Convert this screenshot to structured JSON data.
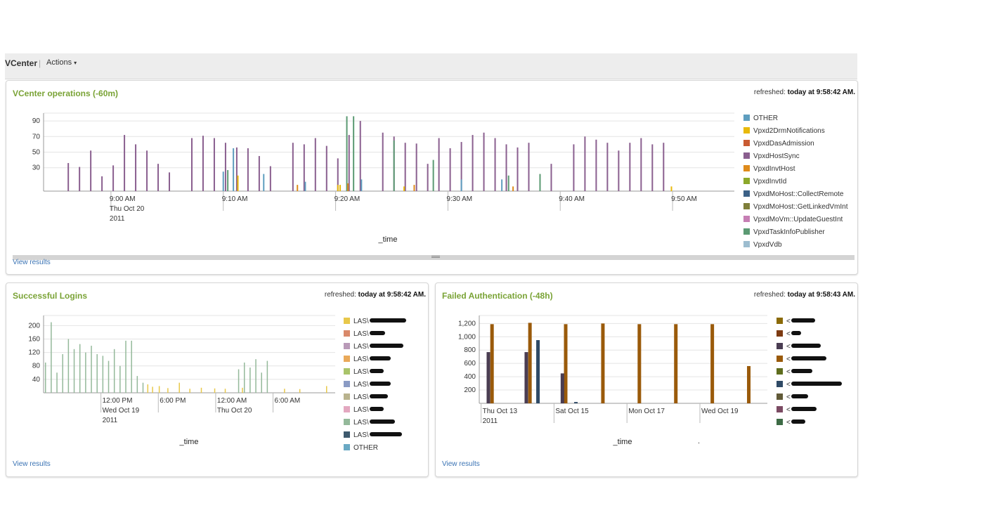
{
  "app": {
    "title": "VCenter",
    "separator": "|",
    "actions_label": "Actions",
    "actions_caret": "▾"
  },
  "panels": {
    "vcenter_ops": {
      "title": "VCenter operations (-60m)",
      "refreshed_label": "refreshed:",
      "refreshed_time": "today at 9:58:42 AM.",
      "view_results": "View results",
      "legend": [
        {
          "label": "OTHER",
          "color": "#5e9ebf"
        },
        {
          "label": "Vpxd2DrmNotifications",
          "color": "#e8b90a"
        },
        {
          "label": "VpxdDasAdmission",
          "color": "#c95b32"
        },
        {
          "label": "VpxdHostSync",
          "color": "#8a5f8f"
        },
        {
          "label": "VpxdInvtHost",
          "color": "#df8b1b"
        },
        {
          "label": "VpxdInvtId",
          "color": "#8ca82a"
        },
        {
          "label": "VpxdMoHost::CollectRemote",
          "color": "#3c6187"
        },
        {
          "label": "VpxdMoHost::GetLinkedVmInt",
          "color": "#7f7f3a"
        },
        {
          "label": "VpxdMoVm::UpdateGuestInt",
          "color": "#c67fb4"
        },
        {
          "label": "VpxdTaskInfoPublisher",
          "color": "#5b9a73"
        },
        {
          "label": "VpxdVdb",
          "color": "#9dbdcf"
        }
      ]
    },
    "successful_logins": {
      "title": "Successful Logins",
      "refreshed_label": "refreshed:",
      "refreshed_time": "today at 9:58:42 AM.",
      "view_results": "View results",
      "legend": [
        {
          "label": "LAS\\",
          "color": "#e8c84a"
        },
        {
          "label": "LAS\\",
          "color": "#d9896a"
        },
        {
          "label": "LAS\\",
          "color": "#b99ab8"
        },
        {
          "label": "LAS\\",
          "color": "#e9a95a"
        },
        {
          "label": "LAS\\",
          "color": "#a9c46a"
        },
        {
          "label": "LAS\\",
          "color": "#8a9bc4"
        },
        {
          "label": "LAS\\",
          "color": "#b9b38e"
        },
        {
          "label": "LAS\\",
          "color": "#e3a8c0"
        },
        {
          "label": "LAS\\",
          "color": "#94b99a"
        },
        {
          "label": "LAS\\",
          "color": "#3e5a6e"
        },
        {
          "label": "OTHER",
          "color": "#6aa9c4"
        }
      ]
    },
    "failed_auth": {
      "title": "Failed Authentication (-48h)",
      "refreshed_label": "refreshed:",
      "refreshed_time": "today at 9:58:43 AM.",
      "view_results": "View results",
      "stray_mark": ".",
      "legend": [
        {
          "label": "<",
          "color": "#8b6a08"
        },
        {
          "label": "<",
          "color": "#7d3b12"
        },
        {
          "label": "<",
          "color": "#4a3d52"
        },
        {
          "label": "<",
          "color": "#9a5a0a"
        },
        {
          "label": "<",
          "color": "#5e6d1e"
        },
        {
          "label": "<",
          "color": "#2f4a66"
        },
        {
          "label": "<",
          "color": "#615a38"
        },
        {
          "label": "<",
          "color": "#7b4a63"
        },
        {
          "label": "<",
          "color": "#3d6b45"
        }
      ]
    }
  },
  "chart_data": [
    {
      "type": "bar",
      "title": "VCenter operations (-60m)",
      "xlabel": "_time",
      "ylabel": "",
      "ylim": [
        0,
        100
      ],
      "yticks": [
        30,
        50,
        70,
        90
      ],
      "xticks": [
        {
          "label": "9:00 AM",
          "sub": [
            "Thu Oct 20",
            "2011"
          ],
          "minute": 6
        },
        {
          "label": "9:10 AM",
          "sub": [],
          "minute": 16
        },
        {
          "label": "9:20 AM",
          "sub": [],
          "minute": 26
        },
        {
          "label": "9:30 AM",
          "sub": [],
          "minute": 36
        },
        {
          "label": "9:40 AM",
          "sub": [],
          "minute": 46
        },
        {
          "label": "9:50 AM",
          "sub": [],
          "minute": 56
        }
      ],
      "x_range_minutes": [
        0,
        61.5
      ],
      "series": [
        {
          "name": "VpxdHostSync",
          "color": "#8a5f8f",
          "points": [
            [
              2.2,
              36
            ],
            [
              3.2,
              31
            ],
            [
              4.2,
              52
            ],
            [
              5.2,
              19
            ],
            [
              6.2,
              33
            ],
            [
              7.2,
              72
            ],
            [
              8.2,
              60
            ],
            [
              9.2,
              52
            ],
            [
              10.2,
              35
            ],
            [
              11.2,
              24
            ],
            [
              13.2,
              68
            ],
            [
              14.2,
              71
            ],
            [
              15.2,
              68
            ],
            [
              16.2,
              62
            ],
            [
              17.2,
              56
            ],
            [
              18.2,
              55
            ],
            [
              19.2,
              45
            ],
            [
              20.2,
              32
            ],
            [
              22.2,
              62
            ],
            [
              23.2,
              60
            ],
            [
              24.2,
              68
            ],
            [
              25.2,
              58
            ],
            [
              26.2,
              42
            ],
            [
              27.2,
              72
            ],
            [
              28.2,
              90
            ],
            [
              30.2,
              75
            ],
            [
              31.2,
              70
            ],
            [
              32.2,
              62
            ],
            [
              33.2,
              61
            ],
            [
              34.2,
              35
            ],
            [
              35.2,
              68
            ],
            [
              36.2,
              55
            ],
            [
              37.2,
              63
            ],
            [
              38.2,
              72
            ],
            [
              39.2,
              75
            ],
            [
              40.2,
              68
            ],
            [
              41.2,
              60
            ],
            [
              42.2,
              56
            ],
            [
              43.2,
              62
            ],
            [
              45.2,
              35
            ],
            [
              47.2,
              60
            ],
            [
              48.2,
              70
            ],
            [
              49.2,
              66
            ],
            [
              50.2,
              62
            ],
            [
              51.2,
              52
            ],
            [
              52.2,
              62
            ],
            [
              53.2,
              68
            ],
            [
              54.2,
              60
            ],
            [
              55.2,
              62
            ]
          ]
        },
        {
          "name": "VpxdTaskInfoPublisher",
          "color": "#5b9a73",
          "points": [
            [
              16.4,
              27
            ],
            [
              27.0,
              96
            ],
            [
              27.6,
              96
            ],
            [
              31.2,
              65
            ],
            [
              34.7,
              40
            ],
            [
              41.4,
              20
            ],
            [
              44.2,
              22
            ]
          ]
        },
        {
          "name": "OTHER",
          "color": "#5e9ebf",
          "points": [
            [
              16.0,
              25
            ],
            [
              16.9,
              55
            ],
            [
              19.6,
              22
            ],
            [
              23.3,
              12
            ],
            [
              28.3,
              15
            ],
            [
              37.2,
              15
            ],
            [
              40.8,
              15
            ]
          ]
        },
        {
          "name": "Vpxd2DrmNotifications",
          "color": "#e8b90a",
          "points": [
            [
              17.3,
              20
            ],
            [
              26.4,
              8
            ],
            [
              26.2,
              8
            ],
            [
              32.1,
              6
            ],
            [
              55.9,
              6
            ]
          ]
        },
        {
          "name": "VpxdInvtHost",
          "color": "#df8b1b",
          "points": [
            [
              22.6,
              8
            ],
            [
              27.1,
              10
            ],
            [
              33.0,
              8
            ],
            [
              41.8,
              6
            ]
          ]
        }
      ]
    },
    {
      "type": "bar",
      "title": "Successful Logins",
      "xlabel": "_time",
      "ylabel": "",
      "ylim": [
        0,
        230
      ],
      "yticks": [
        40,
        80,
        120,
        160,
        200
      ],
      "xticks": [
        {
          "label": "12:00 PM",
          "sub": [
            "Wed Oct 19",
            "2011"
          ],
          "hour": 12
        },
        {
          "label": "6:00 PM",
          "sub": [],
          "hour": 18
        },
        {
          "label": "12:00 AM",
          "sub": [
            "Thu Oct 20"
          ],
          "hour": 24
        },
        {
          "label": "6:00 AM",
          "sub": [],
          "hour": 30
        }
      ],
      "x_range_hours": [
        6,
        36.5
      ],
      "series": [
        {
          "name": "LAS\\",
          "color": "#94b99a",
          "points": [
            [
              6.2,
              90
            ],
            [
              6.8,
              210
            ],
            [
              7.4,
              60
            ],
            [
              8.0,
              115
            ],
            [
              8.6,
              160
            ],
            [
              9.2,
              130
            ],
            [
              9.8,
              145
            ],
            [
              10.4,
              120
            ],
            [
              11.0,
              140
            ],
            [
              11.6,
              115
            ],
            [
              12.2,
              110
            ],
            [
              12.8,
              95
            ],
            [
              13.4,
              130
            ],
            [
              14.0,
              80
            ],
            [
              14.6,
              155
            ],
            [
              15.2,
              155
            ],
            [
              15.8,
              50
            ],
            [
              16.4,
              30
            ],
            [
              26.4,
              70
            ],
            [
              27.0,
              90
            ],
            [
              27.6,
              75
            ],
            [
              28.2,
              100
            ],
            [
              28.8,
              60
            ],
            [
              29.4,
              95
            ]
          ]
        },
        {
          "name": "LAS\\",
          "color": "#e8c84a",
          "points": [
            [
              16.9,
              25
            ],
            [
              17.4,
              18
            ],
            [
              18.1,
              20
            ],
            [
              19.0,
              14
            ],
            [
              20.2,
              30
            ],
            [
              21.3,
              12
            ],
            [
              22.5,
              15
            ],
            [
              23.9,
              13
            ],
            [
              25.0,
              12
            ],
            [
              26.8,
              15
            ],
            [
              31.2,
              12
            ],
            [
              32.8,
              11
            ],
            [
              35.6,
              20
            ]
          ]
        }
      ]
    },
    {
      "type": "bar",
      "title": "Failed Authentication (-48h)",
      "xlabel": "_time",
      "ylabel": "",
      "ylim": [
        0,
        1320
      ],
      "yticks": [
        200,
        400,
        600,
        800,
        "1,000",
        "1,200"
      ],
      "xticks": [
        {
          "label": "Thu Oct 13",
          "sub": [
            "2011"
          ],
          "day": 0
        },
        {
          "label": "Sat Oct 15",
          "sub": [],
          "day": 2
        },
        {
          "label": "Mon Oct 17",
          "sub": [],
          "day": 4
        },
        {
          "label": "Wed Oct 19",
          "sub": [],
          "day": 6
        }
      ],
      "x_range_days": [
        -0.05,
        7.85
      ],
      "series": [
        {
          "name": "<",
          "color": "#9a5a0a",
          "points": [
            [
              0.3,
              1190
            ],
            [
              1.34,
              1210
            ],
            [
              2.32,
              1190
            ],
            [
              3.34,
              1200
            ],
            [
              4.34,
              1190
            ],
            [
              5.34,
              1190
            ],
            [
              6.34,
              1190
            ],
            [
              7.34,
              560
            ]
          ]
        },
        {
          "name": "<",
          "color": "#4a3d52",
          "points": [
            [
              0.2,
              770
            ],
            [
              1.24,
              770
            ],
            [
              2.23,
              450
            ]
          ]
        },
        {
          "name": "<",
          "color": "#2f4a66",
          "points": [
            [
              1.56,
              950
            ],
            [
              2.6,
              20
            ]
          ]
        }
      ]
    }
  ]
}
